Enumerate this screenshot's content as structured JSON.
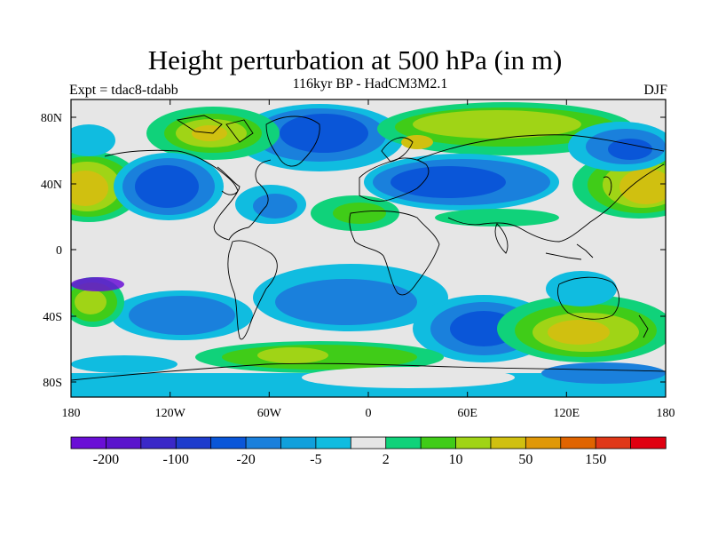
{
  "title": "Height perturbation at 500 hPa (in m)",
  "subtitle_left": "Expt = tdac8-tdabb",
  "subtitle_center": "116kyr BP - HadCM3M2.1",
  "subtitle_right": "DJF",
  "axes": {
    "x_ticks": [
      "180",
      "120W",
      "60W",
      "0",
      "60E",
      "120E",
      "180"
    ],
    "y_ticks": [
      "80N",
      "40N",
      "0",
      "40S",
      "80S"
    ]
  },
  "colorbar": {
    "labels": [
      "-200",
      "-100",
      "-20",
      "-5",
      "2",
      "10",
      "50",
      "150"
    ],
    "colors": [
      "#6a0fd6",
      "#5a14cc",
      "#3a28c8",
      "#1e3ccc",
      "#0a56d8",
      "#1a80dc",
      "#10a0dc",
      "#10bce0",
      "#e6e6e6",
      "#10d27a",
      "#40cc18",
      "#a0d416",
      "#d0c010",
      "#e09808",
      "#e06400",
      "#e03818",
      "#e00010"
    ]
  },
  "colors": {
    "land_outline": "#000000",
    "background_field": "#e6e6e6"
  }
}
